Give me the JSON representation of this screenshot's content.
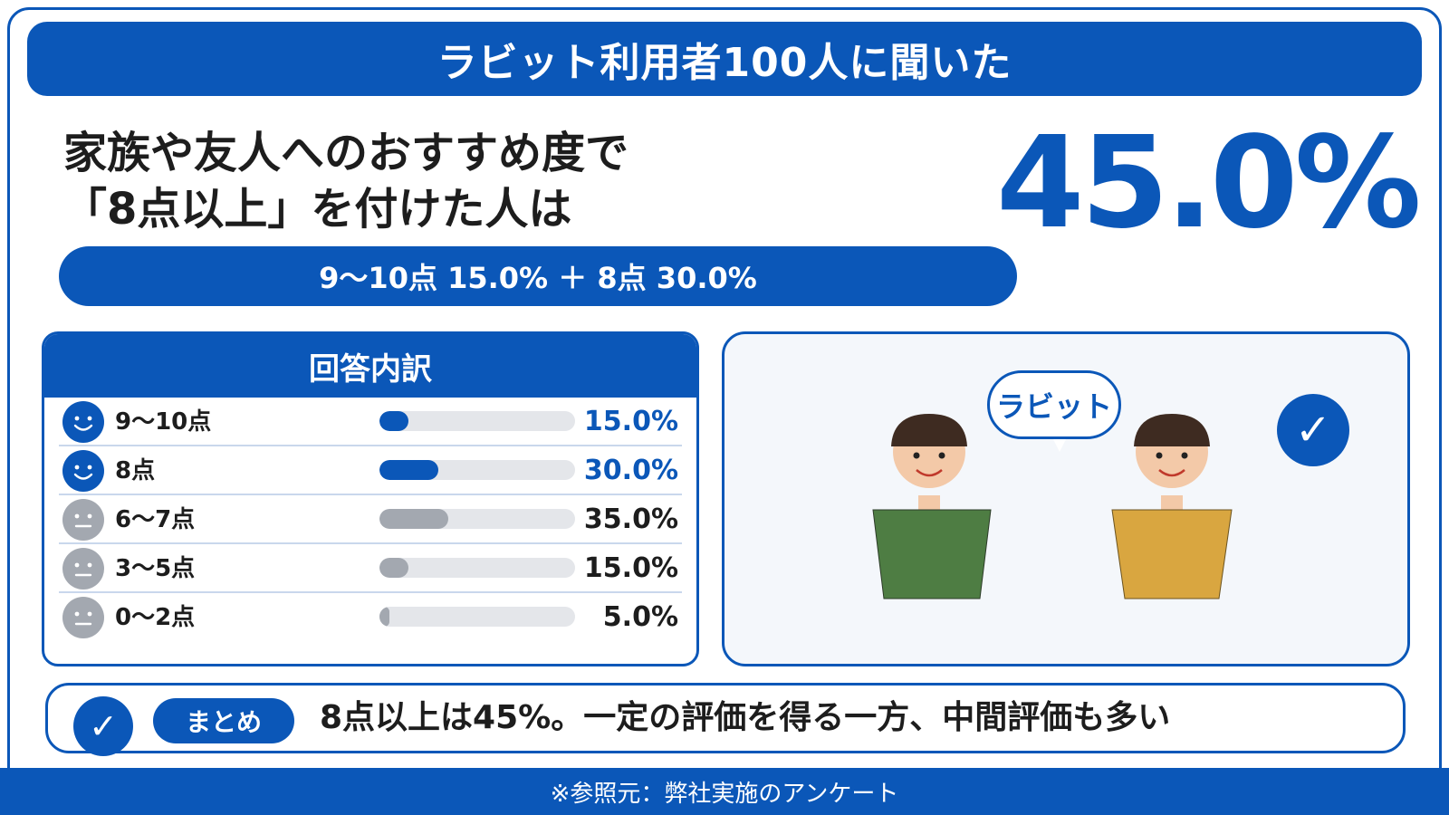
{
  "header": {
    "title": "ラビット利用者100人に聞いた"
  },
  "headline": {
    "line1": "家族や友人へのおすすめ度で",
    "line2": "「8点以上」を付けた人は"
  },
  "highlight_value": "45.0%",
  "sub_pill": "9〜10点 15.0% ＋ 8点 30.0%",
  "breakdown": {
    "title": "回答内訳"
  },
  "illustration": {
    "bubble_label": "ラビット"
  },
  "summary": {
    "tag": "まとめ",
    "text": "8点以上は45%。一定の評価を得る一方、中間評価も多い"
  },
  "footer": {
    "source": "※参照元：弊社実施のアンケート"
  },
  "colors": {
    "accent": "#0b57b8",
    "neutral": "#a3a8b0",
    "track": "#e4e6ea"
  },
  "chart_data": {
    "type": "bar",
    "title": "回答内訳",
    "orientation": "horizontal",
    "categories": [
      "9〜10点",
      "8点",
      "6〜7点",
      "3〜5点",
      "0〜2点"
    ],
    "values": [
      15.0,
      30.0,
      35.0,
      15.0,
      5.0
    ],
    "value_labels": [
      "15.0%",
      "30.0%",
      "35.0%",
      "15.0%",
      "5.0%"
    ],
    "sentiment": [
      "positive",
      "positive",
      "neutral",
      "neutral",
      "neutral"
    ],
    "xlim": [
      0,
      100
    ],
    "grid": false,
    "legend": "none"
  }
}
